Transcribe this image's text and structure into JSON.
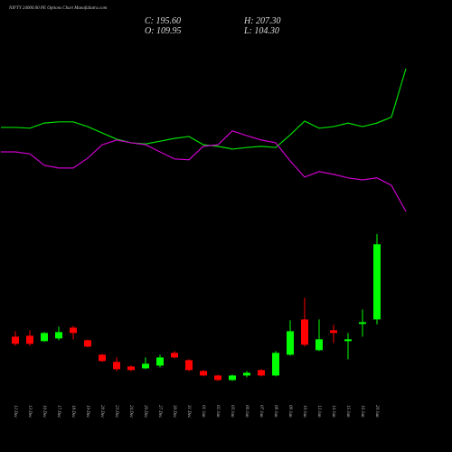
{
  "chart_data": {
    "type": "candlestick",
    "title": "NIFTY 24000.00 PE Options Chart MunafaSutra.com",
    "header": {
      "close": "C: 195.60",
      "high": "H: 207.30",
      "open": "O: 109.95",
      "low": "L: 104.30"
    },
    "categories": [
      null,
      "12 Dec",
      "13 Dec",
      "16 Dec",
      "17 Dec",
      "18 Dec",
      "19 Dec",
      "20 Dec",
      "23 Dec",
      "24 Dec",
      "26 Dec",
      "27 Dec",
      "30 Dec",
      "31 Dec",
      "01 Jan",
      "02 Jan",
      "03 Jan",
      "06 Jan",
      "07 Jan",
      "08 Jan",
      "09 Jan",
      "10 Jan",
      "13 Jan",
      "14 Jan",
      "15 Jan",
      "16 Jan",
      "20 Jan",
      null,
      null
    ],
    "open": [
      null,
      90.3,
      91.4,
      85.2,
      88.3,
      100.6,
      86.2,
      69.7,
      61.5,
      56.3,
      54.2,
      57.3,
      71.8,
      63.5,
      51.2,
      46.0,
      40.8,
      46.0,
      52.2,
      46.0,
      69.7,
      109.9,
      74.9,
      97.6,
      85.2,
      104.8,
      109.95,
      null,
      null
    ],
    "high": [
      null,
      96.5,
      97.6,
      95.5,
      101.7,
      102.7,
      87.3,
      70.8,
      66.6,
      57.3,
      66.6,
      69.7,
      73.8,
      64.6,
      52.2,
      47.0,
      47.0,
      51.2,
      53.2,
      73.8,
      108.9,
      134.7,
      109.9,
      103.7,
      94.5,
      121.3,
      207.3,
      null,
      null
    ],
    "low": [
      null,
      80.0,
      80.0,
      84.6,
      86.2,
      87.3,
      78.0,
      61.5,
      51.2,
      51.2,
      53.2,
      55.3,
      65.6,
      51.2,
      45.0,
      39.8,
      39.8,
      43.9,
      45.0,
      45.0,
      68.7,
      79.0,
      73.8,
      83.1,
      64.6,
      90.3,
      104.3,
      null,
      null
    ],
    "close": [
      null,
      82.1,
      82.1,
      94.5,
      95.5,
      94.5,
      79.0,
      62.5,
      53.2,
      52.2,
      59.4,
      66.6,
      66.6,
      52.2,
      46.0,
      40.8,
      46.0,
      49.1,
      46.0,
      71.8,
      96.5,
      81.1,
      87.3,
      94.5,
      87.3,
      106.8,
      195.6,
      null,
      null
    ],
    "up_color": "#00ff00",
    "down_color": "#ff0000",
    "ylim": [
      0,
      450
    ],
    "y2lim": [
      0,
      100
    ],
    "series": [
      {
        "color": "#00dd00",
        "axis": "y2",
        "values": [
          73.1,
          73.1,
          72.9,
          74.2,
          74.5,
          74.5,
          73.3,
          71.7,
          70.1,
          69.2,
          68.9,
          69.6,
          70.3,
          70.8,
          68.7,
          68.3,
          67.6,
          68.0,
          68.3,
          68.0,
          71.2,
          74.7,
          72.9,
          73.3,
          74.2,
          73.3,
          74.2,
          75.7,
          88.0
        ]
      },
      {
        "color": "#cc00cc",
        "axis": "y2",
        "values": [
          66.9,
          66.9,
          66.4,
          63.5,
          62.8,
          62.8,
          65.3,
          68.7,
          69.9,
          69.2,
          68.7,
          66.9,
          65.1,
          64.9,
          68.3,
          68.7,
          72.2,
          71.0,
          69.9,
          69.2,
          64.6,
          60.5,
          61.9,
          61.2,
          60.3,
          59.8,
          60.3,
          58.4,
          51.8
        ]
      }
    ]
  }
}
